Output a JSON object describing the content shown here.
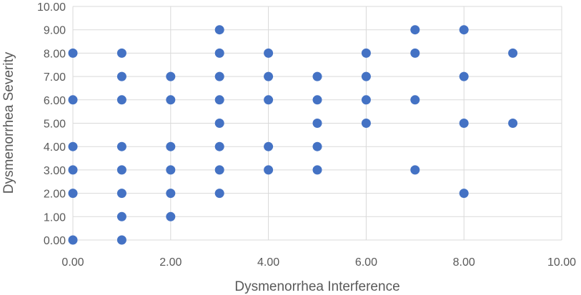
{
  "chart_data": {
    "type": "scatter",
    "xlabel": "Dysmenorrhea Interference",
    "ylabel": "Dysmenorrhea Severity",
    "xlim": [
      0,
      10
    ],
    "ylim": [
      0,
      10
    ],
    "x_ticks": [
      "0.00",
      "2.00",
      "4.00",
      "6.00",
      "8.00",
      "10.00"
    ],
    "y_ticks": [
      "0.00",
      "1.00",
      "2.00",
      "3.00",
      "4.00",
      "5.00",
      "6.00",
      "7.00",
      "8.00",
      "9.00",
      "10.00"
    ],
    "grid": true,
    "marker_color": "#4472c4",
    "points": [
      {
        "x": 0,
        "y": 8
      },
      {
        "x": 0,
        "y": 6
      },
      {
        "x": 0,
        "y": 4
      },
      {
        "x": 0,
        "y": 3
      },
      {
        "x": 0,
        "y": 2
      },
      {
        "x": 0,
        "y": 0
      },
      {
        "x": 1,
        "y": 8
      },
      {
        "x": 1,
        "y": 7
      },
      {
        "x": 1,
        "y": 6
      },
      {
        "x": 1,
        "y": 4
      },
      {
        "x": 1,
        "y": 3
      },
      {
        "x": 1,
        "y": 2
      },
      {
        "x": 1,
        "y": 1
      },
      {
        "x": 1,
        "y": 0
      },
      {
        "x": 2,
        "y": 7
      },
      {
        "x": 2,
        "y": 6
      },
      {
        "x": 2,
        "y": 4
      },
      {
        "x": 2,
        "y": 3
      },
      {
        "x": 2,
        "y": 2
      },
      {
        "x": 2,
        "y": 1
      },
      {
        "x": 3,
        "y": 9
      },
      {
        "x": 3,
        "y": 8
      },
      {
        "x": 3,
        "y": 7
      },
      {
        "x": 3,
        "y": 6
      },
      {
        "x": 3,
        "y": 5
      },
      {
        "x": 3,
        "y": 4
      },
      {
        "x": 3,
        "y": 3
      },
      {
        "x": 3,
        "y": 2
      },
      {
        "x": 4,
        "y": 8
      },
      {
        "x": 4,
        "y": 7
      },
      {
        "x": 4,
        "y": 6
      },
      {
        "x": 4,
        "y": 4
      },
      {
        "x": 4,
        "y": 3
      },
      {
        "x": 5,
        "y": 7
      },
      {
        "x": 5,
        "y": 6
      },
      {
        "x": 5,
        "y": 5
      },
      {
        "x": 5,
        "y": 4
      },
      {
        "x": 5,
        "y": 3
      },
      {
        "x": 6,
        "y": 8
      },
      {
        "x": 6,
        "y": 7
      },
      {
        "x": 6,
        "y": 6
      },
      {
        "x": 6,
        "y": 5
      },
      {
        "x": 7,
        "y": 9
      },
      {
        "x": 7,
        "y": 8
      },
      {
        "x": 7,
        "y": 6
      },
      {
        "x": 7,
        "y": 3
      },
      {
        "x": 8,
        "y": 9
      },
      {
        "x": 8,
        "y": 7
      },
      {
        "x": 8,
        "y": 5
      },
      {
        "x": 8,
        "y": 2
      },
      {
        "x": 9,
        "y": 8
      },
      {
        "x": 9,
        "y": 5
      }
    ]
  }
}
